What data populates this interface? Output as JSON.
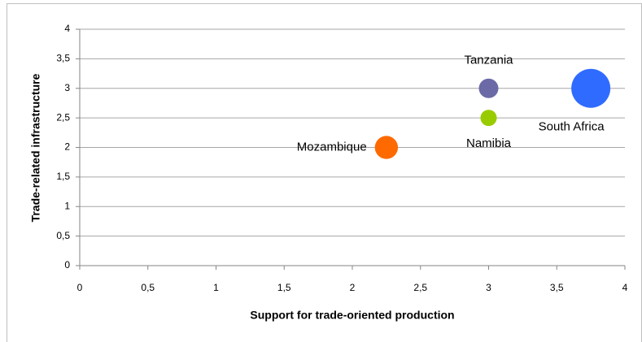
{
  "chart_data": {
    "type": "bubble",
    "x_label": "Support for trade-oriented production",
    "y_label": "Trade-related infrastructure",
    "series": [
      {
        "name": "Mozambique",
        "color": "#ff6a00",
        "x": [
          2.25
        ],
        "values": [
          2
        ],
        "sizes": [
          1.4
        ]
      },
      {
        "name": "Tanzania",
        "color": "#6b6aa6",
        "x": [
          3
        ],
        "values": [
          3
        ],
        "sizes": [
          1
        ]
      },
      {
        "name": "Namibia",
        "color": "#99cc00",
        "x": [
          3
        ],
        "values": [
          2.5
        ],
        "sizes": [
          0.7
        ]
      },
      {
        "name": "South Africa",
        "color": "#2f6bff",
        "x": [
          3.75
        ],
        "values": [
          3
        ],
        "sizes": [
          4
        ]
      }
    ],
    "xlim": [
      0,
      4
    ],
    "xticks": [
      0,
      {
        "value": 0.5,
        "label": "0,5"
      },
      1,
      {
        "value": 1.5,
        "label": "1,5"
      },
      2,
      {
        "value": 2.5,
        "label": "2,5"
      },
      3,
      {
        "value": 3.5,
        "label": "3,5"
      },
      4
    ],
    "ylim": [
      0,
      4
    ],
    "yticks": [
      0,
      {
        "value": 0.5,
        "label": "0,5"
      },
      1,
      {
        "value": 1.5,
        "label": "1,5"
      },
      2,
      {
        "value": 2.5,
        "label": "2,5"
      },
      3,
      {
        "value": 3.5,
        "label": "3,5"
      },
      4
    ],
    "grid": true
  }
}
